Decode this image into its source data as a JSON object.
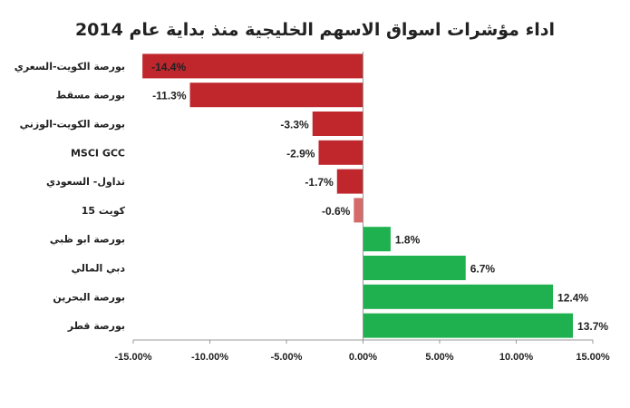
{
  "chart_data": {
    "type": "bar",
    "orientation": "horizontal",
    "title": "اداء مؤشرات اسواق الاسهم الخليجية منذ بداية عام 2014",
    "categories": [
      "بورصة الكويت-السعري",
      "بورصة مسقط",
      "بورصة الكويت-الوزني",
      "MSCI GCC",
      "تداول- السعودي",
      "كويت 15",
      "بورصة ابو ظبي",
      "دبي المالي",
      "بورصة البحرين",
      "بورصة قطر"
    ],
    "values": [
      -14.4,
      -11.3,
      -3.3,
      -2.9,
      -1.7,
      -0.6,
      1.8,
      6.7,
      12.4,
      13.7
    ],
    "value_labels": [
      "-14.4%",
      "-11.3%",
      "-3.3%",
      "-2.9%",
      "-1.7%",
      "-0.6%",
      "1.8%",
      "6.7%",
      "12.4%",
      "13.7%"
    ],
    "xlim": [
      -15,
      15
    ],
    "xticks": [
      -15,
      -10,
      -5,
      0,
      5,
      10,
      15
    ],
    "xtick_labels": [
      "-15.00%",
      "-10.00%",
      "-5.00%",
      "0.00%",
      "5.00%",
      "10.00%",
      "15.00%"
    ],
    "colors": {
      "negative": "#c0272d",
      "negative_small": "#d66a6a",
      "positive": "#1fb14f",
      "axis": "#999999",
      "text": "#222222"
    },
    "grid": false,
    "legend": "none"
  }
}
